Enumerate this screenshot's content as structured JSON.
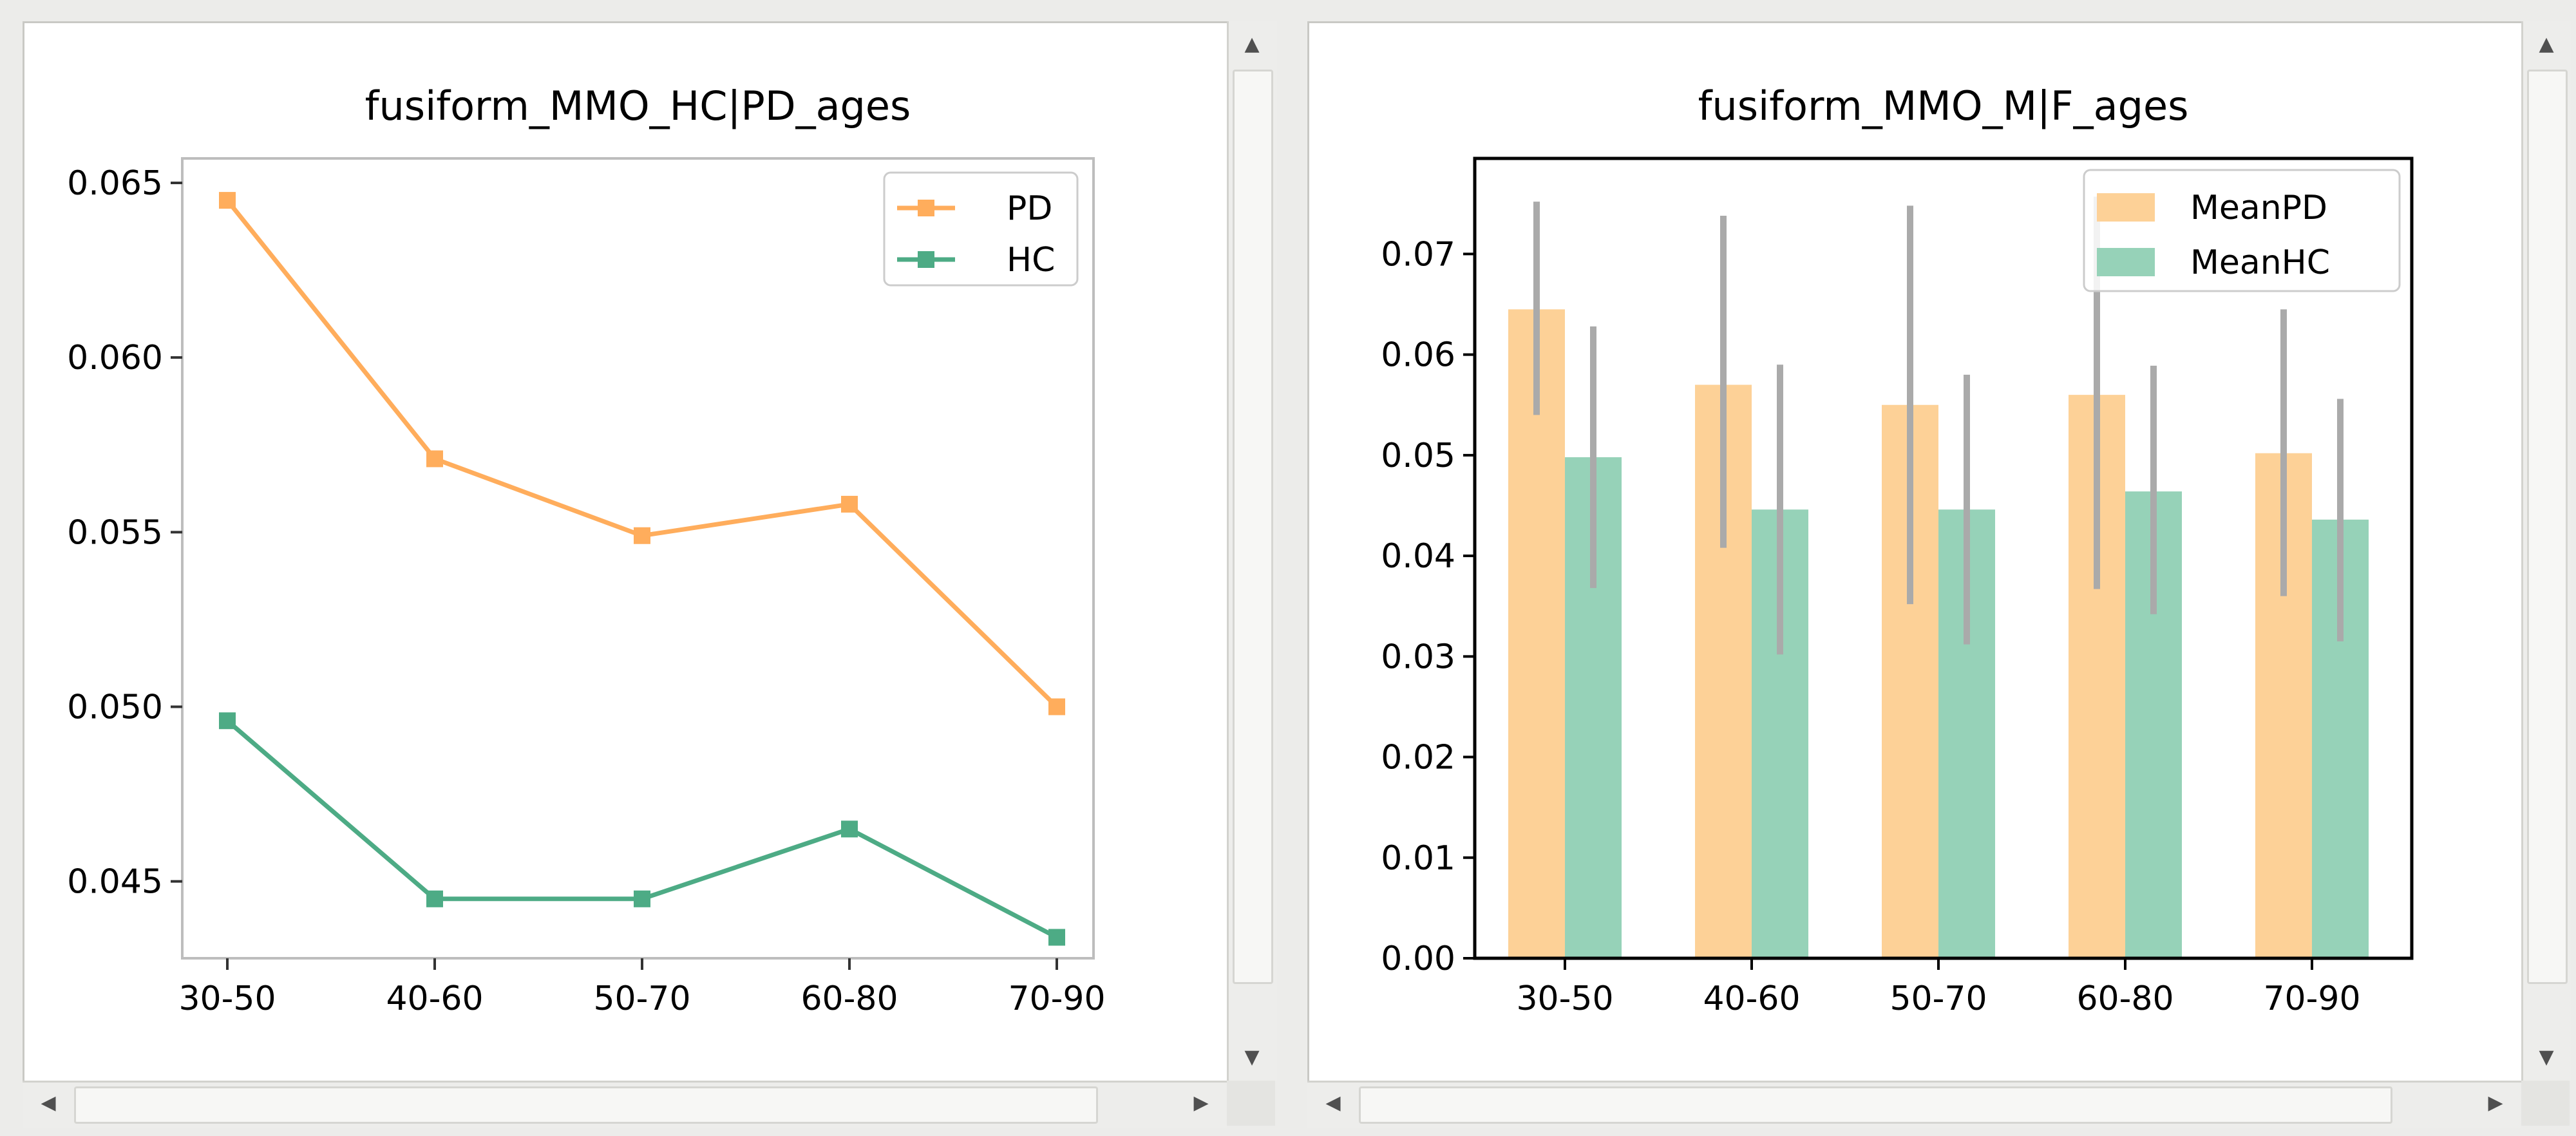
{
  "colors": {
    "pd_line": "#ffad5c",
    "hc_line": "#4dab85",
    "pd_bar": "#fdd197",
    "hc_bar": "#96d2b8",
    "error_bar": "#aaaaaa",
    "axis": "#000000",
    "left_frame": "#bdbdbd"
  },
  "icons": {
    "scroll_up": "up-arrow-icon",
    "scroll_down": "down-arrow-icon",
    "scroll_left": "left-arrow-icon",
    "scroll_right": "right-arrow-icon"
  },
  "chart_data": [
    {
      "type": "line",
      "title": "fusiform_MMO_HC|PD_ages",
      "xlabel": "",
      "ylabel": "",
      "categories": [
        "30-50",
        "40-60",
        "50-70",
        "60-80",
        "70-90"
      ],
      "ylim": [
        0.0428,
        0.0657
      ],
      "yticks": [
        0.045,
        0.05,
        0.055,
        0.06,
        0.065
      ],
      "ytick_labels": [
        "0.045",
        "0.050",
        "0.055",
        "0.060",
        "0.065"
      ],
      "series": [
        {
          "name": "PD",
          "values": [
            0.0645,
            0.0571,
            0.0549,
            0.0558,
            0.05
          ]
        },
        {
          "name": "HC",
          "values": [
            0.0496,
            0.0445,
            0.0445,
            0.0465,
            0.0434
          ]
        }
      ],
      "legend": "top-right",
      "grid": false
    },
    {
      "type": "bar",
      "title": "fusiform_MMO_M|F_ages",
      "xlabel": "",
      "ylabel": "",
      "categories": [
        "30-50",
        "40-60",
        "50-70",
        "60-80",
        "70-90"
      ],
      "ylim": [
        0,
        0.0795
      ],
      "yticks": [
        0.0,
        0.01,
        0.02,
        0.03,
        0.04,
        0.05,
        0.06,
        0.07
      ],
      "ytick_labels": [
        "0.00",
        "0.01",
        "0.02",
        "0.03",
        "0.04",
        "0.05",
        "0.06",
        "0.07"
      ],
      "series": [
        {
          "name": "MeanPD",
          "values": [
            0.0645,
            0.057,
            0.055,
            0.056,
            0.0502
          ],
          "err_low": [
            0.054,
            0.0408,
            0.0352,
            0.0367,
            0.036
          ],
          "err_high": [
            0.0752,
            0.0738,
            0.0748,
            0.0757,
            0.0645
          ]
        },
        {
          "name": "MeanHC",
          "values": [
            0.0498,
            0.0446,
            0.0446,
            0.0464,
            0.0436
          ],
          "err_low": [
            0.0368,
            0.0302,
            0.0312,
            0.0342,
            0.0315
          ],
          "err_high": [
            0.0628,
            0.059,
            0.058,
            0.0589,
            0.0556
          ]
        }
      ],
      "legend": "top-right",
      "grid": false
    }
  ]
}
